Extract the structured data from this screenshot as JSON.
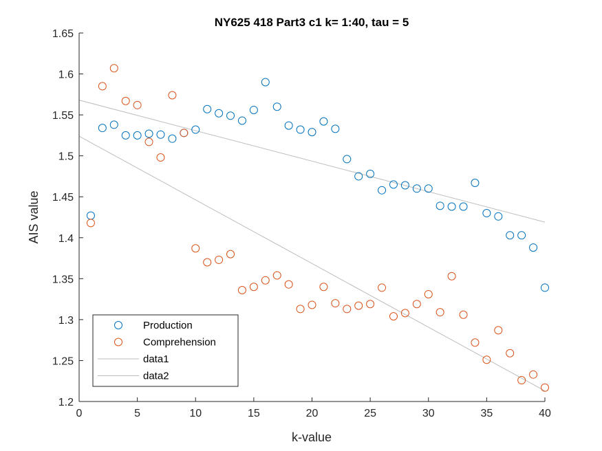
{
  "chart_data": {
    "type": "scatter",
    "title": "NY625 418 Part3 c1 k= 1:40, tau = 5",
    "xlabel": "k-value",
    "ylabel": "AIS value",
    "xlim": [
      0,
      40
    ],
    "ylim": [
      1.2,
      1.65
    ],
    "xticks": [
      0,
      5,
      10,
      15,
      20,
      25,
      30,
      35,
      40
    ],
    "yticks": [
      1.2,
      1.25,
      1.3,
      1.35,
      1.4,
      1.45,
      1.5,
      1.55,
      1.6,
      1.65
    ],
    "xtick_labels": [
      "0",
      "5",
      "10",
      "15",
      "20",
      "25",
      "30",
      "35",
      "40"
    ],
    "ytick_labels": [
      "1.2",
      "1.25",
      "1.3",
      "1.35",
      "1.4",
      "1.45",
      "1.5",
      "1.55",
      "1.6",
      "1.65"
    ],
    "grid": false,
    "legend_position": "bottom-left",
    "series": [
      {
        "name": "Production",
        "kind": "markers",
        "color": "#0072BD",
        "x": [
          1,
          2,
          3,
          4,
          5,
          6,
          7,
          8,
          9,
          10,
          11,
          12,
          13,
          14,
          15,
          16,
          17,
          18,
          19,
          20,
          21,
          22,
          23,
          24,
          25,
          26,
          27,
          28,
          29,
          30,
          31,
          32,
          33,
          34,
          35,
          36,
          37,
          38,
          39,
          40
        ],
        "y": [
          1.427,
          1.534,
          1.538,
          1.525,
          1.525,
          1.527,
          1.526,
          1.521,
          1.528,
          1.532,
          1.557,
          1.552,
          1.549,
          1.543,
          1.556,
          1.59,
          1.56,
          1.537,
          1.532,
          1.529,
          1.542,
          1.533,
          1.496,
          1.475,
          1.478,
          1.458,
          1.465,
          1.464,
          1.46,
          1.46,
          1.439,
          1.438,
          1.438,
          1.467,
          1.43,
          1.426,
          1.403,
          1.403,
          1.388,
          1.339
        ]
      },
      {
        "name": "Comprehension",
        "kind": "markers",
        "color": "#D95319",
        "x": [
          1,
          2,
          3,
          4,
          5,
          6,
          7,
          8,
          9,
          10,
          11,
          12,
          13,
          14,
          15,
          16,
          17,
          18,
          19,
          20,
          21,
          22,
          23,
          24,
          25,
          26,
          27,
          28,
          29,
          30,
          31,
          32,
          33,
          34,
          35,
          36,
          37,
          38,
          39,
          40
        ],
        "y": [
          1.418,
          1.585,
          1.607,
          1.567,
          1.562,
          1.517,
          1.498,
          1.574,
          1.528,
          1.387,
          1.37,
          1.373,
          1.38,
          1.336,
          1.34,
          1.348,
          1.354,
          1.343,
          1.313,
          1.318,
          1.34,
          1.32,
          1.313,
          1.317,
          1.319,
          1.339,
          1.304,
          1.308,
          1.319,
          1.331,
          1.309,
          1.353,
          1.306,
          1.272,
          1.251,
          1.287,
          1.259,
          1.226,
          1.233,
          1.217
        ]
      },
      {
        "name": "data1",
        "kind": "line",
        "color": "#BDBDBD",
        "x": [
          0,
          40
        ],
        "y": [
          1.568,
          1.419
        ]
      },
      {
        "name": "data2",
        "kind": "line",
        "color": "#BDBDBD",
        "x": [
          0,
          40
        ],
        "y": [
          1.524,
          1.213
        ]
      }
    ]
  }
}
